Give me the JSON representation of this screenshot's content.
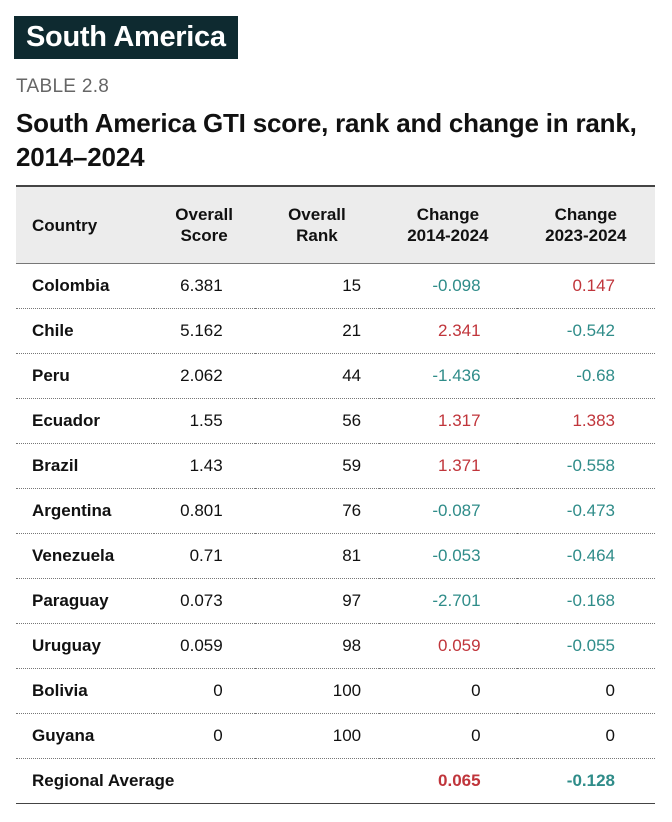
{
  "header": {
    "badge": "South America",
    "table_number": "TABLE 2.8",
    "title": "South America GTI score, rank and change in rank, 2014–2024"
  },
  "columns": {
    "country": "Country",
    "score_l1": "Overall",
    "score_l2": "Score",
    "rank_l1": "Overall",
    "rank_l2": "Rank",
    "ch1_l1": "Change",
    "ch1_l2": "2014-2024",
    "ch2_l1": "Change",
    "ch2_l2": "2023-2024"
  },
  "colors": {
    "badge_bg": "#0e2a30",
    "increase": "#c0353b",
    "decrease": "#2f8c89"
  },
  "rows": [
    {
      "country": "Colombia",
      "score": "6.381",
      "rank": "15",
      "ch1": "-0.098",
      "ch1_sign": "neg",
      "ch2": "0.147",
      "ch2_sign": "pos"
    },
    {
      "country": "Chile",
      "score": "5.162",
      "rank": "21",
      "ch1": "2.341",
      "ch1_sign": "pos",
      "ch2": "-0.542",
      "ch2_sign": "neg"
    },
    {
      "country": "Peru",
      "score": "2.062",
      "rank": "44",
      "ch1": "-1.436",
      "ch1_sign": "neg",
      "ch2": "-0.68",
      "ch2_sign": "neg"
    },
    {
      "country": "Ecuador",
      "score": "1.55",
      "rank": "56",
      "ch1": "1.317",
      "ch1_sign": "pos",
      "ch2": "1.383",
      "ch2_sign": "pos"
    },
    {
      "country": "Brazil",
      "score": "1.43",
      "rank": "59",
      "ch1": "1.371",
      "ch1_sign": "pos",
      "ch2": "-0.558",
      "ch2_sign": "neg"
    },
    {
      "country": "Argentina",
      "score": "0.801",
      "rank": "76",
      "ch1": "-0.087",
      "ch1_sign": "neg",
      "ch2": "-0.473",
      "ch2_sign": "neg"
    },
    {
      "country": "Venezuela",
      "score": "0.71",
      "rank": "81",
      "ch1": "-0.053",
      "ch1_sign": "neg",
      "ch2": "-0.464",
      "ch2_sign": "neg"
    },
    {
      "country": "Paraguay",
      "score": "0.073",
      "rank": "97",
      "ch1": "-2.701",
      "ch1_sign": "neg",
      "ch2": "-0.168",
      "ch2_sign": "neg"
    },
    {
      "country": "Uruguay",
      "score": "0.059",
      "rank": "98",
      "ch1": "0.059",
      "ch1_sign": "pos",
      "ch2": "-0.055",
      "ch2_sign": "neg"
    },
    {
      "country": "Bolivia",
      "score": "0",
      "rank": "100",
      "ch1": "0",
      "ch1_sign": "zero",
      "ch2": "0",
      "ch2_sign": "zero"
    },
    {
      "country": "Guyana",
      "score": "0",
      "rank": "100",
      "ch1": "0",
      "ch1_sign": "zero",
      "ch2": "0",
      "ch2_sign": "zero"
    }
  ],
  "average": {
    "label": "Regional Average",
    "ch1": "0.065",
    "ch1_sign": "pos",
    "ch2": "-0.128",
    "ch2_sign": "neg"
  }
}
